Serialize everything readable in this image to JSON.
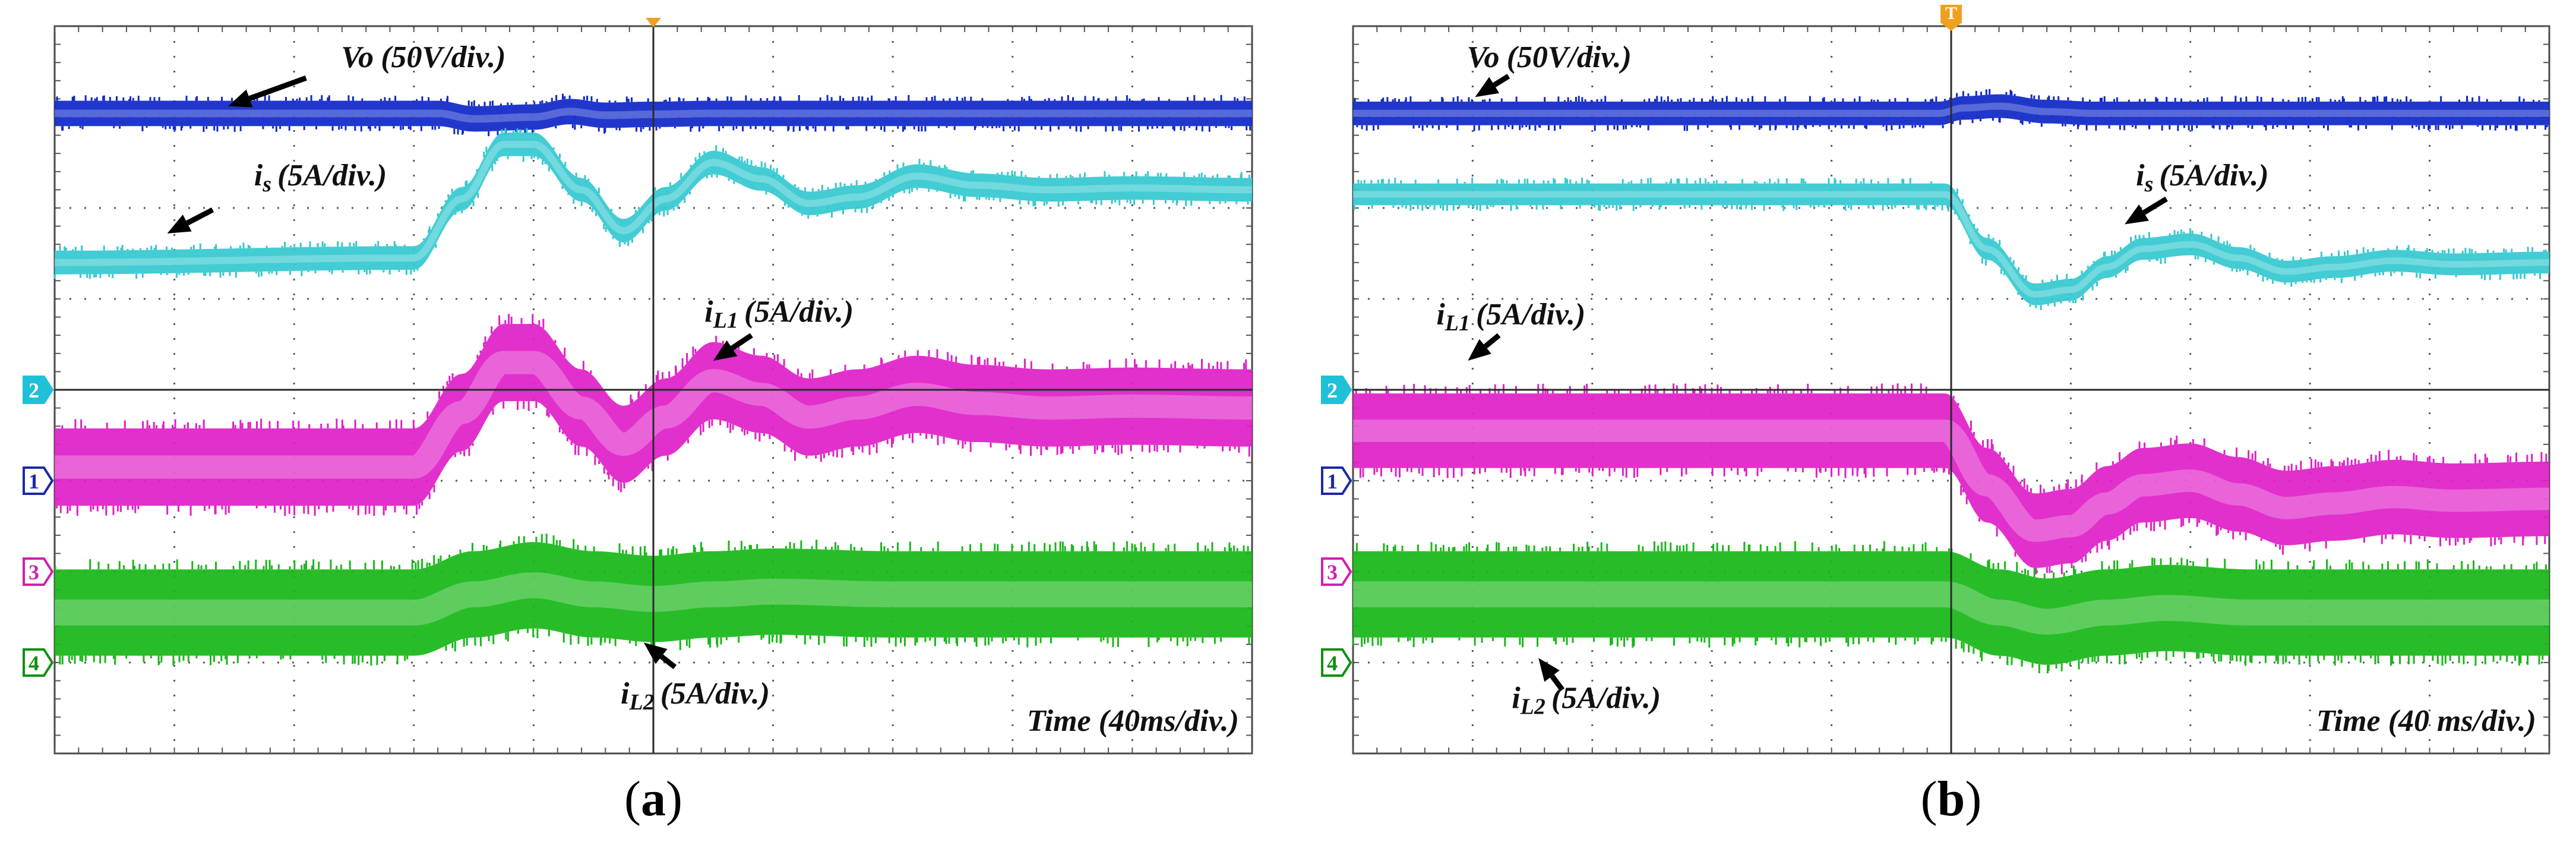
{
  "colors": {
    "vo": "#1028c8",
    "is": "#35c8d0",
    "il1": "#e020c8",
    "il2": "#18b818",
    "marker1": "#1a2aa8",
    "marker2": "#20c0d8",
    "marker3": "#d020b0",
    "marker4": "#109010",
    "trigger": "#f0a020",
    "grid": "#5a5a5a",
    "text": "#111111"
  },
  "chart_data": [
    {
      "id": "a",
      "type": "line",
      "title": "(a)",
      "caption_open": "(",
      "caption_letter": "a",
      "caption_close": ")",
      "xlabel": "Time (40ms/div.)",
      "x_units": "div",
      "y_units": "div",
      "xlim": [
        0,
        10
      ],
      "ylim": [
        -4,
        4
      ],
      "grid": true,
      "trigger_x": 5,
      "trigger_label": "",
      "markers": [
        {
          "id": "2",
          "y": 0.0
        },
        {
          "id": "1",
          "y": -1.0
        },
        {
          "id": "3",
          "y": -2.0
        },
        {
          "id": "4",
          "y": -3.0
        }
      ],
      "series": [
        {
          "name": "Vo (50V/div.)",
          "label_main": "Vo",
          "label_sub": "",
          "label_unit": "(50V/div.)",
          "key": "vo",
          "band": 0.28,
          "x": [
            0,
            3.2,
            3.5,
            4.0,
            4.3,
            4.6,
            5.0,
            5.5,
            6.0,
            10
          ],
          "y": [
            3.04,
            3.04,
            2.98,
            3.0,
            3.06,
            3.02,
            3.03,
            3.04,
            3.04,
            3.04
          ]
        },
        {
          "name": "is (5A/div.)",
          "label_main": "i",
          "label_sub": "s",
          "label_unit": "(5A/div.)",
          "key": "is",
          "band": 0.26,
          "x": [
            0,
            3.0,
            3.4,
            3.75,
            4.0,
            4.4,
            4.75,
            5.1,
            5.5,
            5.9,
            6.3,
            6.7,
            7.2,
            7.7,
            8.3,
            9.0,
            10
          ],
          "y": [
            1.4,
            1.45,
            2.1,
            2.7,
            2.7,
            2.2,
            1.75,
            2.1,
            2.5,
            2.32,
            2.05,
            2.12,
            2.35,
            2.25,
            2.2,
            2.22,
            2.2
          ]
        },
        {
          "name": "iL1 (5A/div.)",
          "label_main": "i",
          "label_sub": "L1",
          "label_unit": "(5A/div.)",
          "key": "il1",
          "band": 0.85,
          "x": [
            0,
            3.0,
            3.4,
            3.75,
            4.0,
            4.4,
            4.75,
            5.1,
            5.5,
            5.9,
            6.3,
            6.7,
            7.2,
            7.7,
            8.3,
            9.0,
            10
          ],
          "y": [
            -0.85,
            -0.85,
            -0.25,
            0.3,
            0.3,
            -0.2,
            -0.6,
            -0.3,
            0.1,
            -0.05,
            -0.3,
            -0.2,
            -0.05,
            -0.15,
            -0.2,
            -0.18,
            -0.2
          ]
        },
        {
          "name": "iL2 (5A/div.)",
          "label_main": "i",
          "label_sub": "L2",
          "label_unit": "(5A/div.)",
          "key": "il2",
          "band": 0.95,
          "x": [
            0,
            3.0,
            3.5,
            4.0,
            4.5,
            5.0,
            5.5,
            6.0,
            7.0,
            8.0,
            10
          ],
          "y": [
            -2.45,
            -2.45,
            -2.25,
            -2.15,
            -2.25,
            -2.3,
            -2.25,
            -2.22,
            -2.25,
            -2.25,
            -2.25
          ]
        }
      ],
      "annotations": [
        {
          "series": "vo",
          "text_x": 3.08,
          "text_y": 3.55,
          "arrow_from": [
            2.1,
            3.43
          ],
          "arrow_to": [
            1.45,
            3.12
          ]
        },
        {
          "series": "is",
          "text_x": 2.22,
          "text_y": 2.25,
          "arrow_from": [
            1.32,
            1.98
          ],
          "arrow_to": [
            0.94,
            1.72
          ]
        },
        {
          "series": "il1",
          "text_x": 6.05,
          "text_y": 0.75,
          "arrow_from": [
            5.82,
            0.6
          ],
          "arrow_to": [
            5.5,
            0.32
          ]
        },
        {
          "series": "il2",
          "text_x": 5.35,
          "text_y": -3.45,
          "arrow_from": [
            5.18,
            -3.05
          ],
          "arrow_to": [
            4.92,
            -2.78
          ]
        }
      ],
      "time_anchor": "end"
    },
    {
      "id": "b",
      "type": "line",
      "title": "(b)",
      "caption_open": "(",
      "caption_letter": "b",
      "caption_close": ")",
      "xlabel": "Time (40 ms/div.)",
      "x_units": "div",
      "y_units": "div",
      "xlim": [
        0,
        10
      ],
      "ylim": [
        -4,
        4
      ],
      "grid": true,
      "trigger_x": 5,
      "trigger_label": "T",
      "markers": [
        {
          "id": "2",
          "y": 0.0
        },
        {
          "id": "1",
          "y": -1.0
        },
        {
          "id": "3",
          "y": -2.0
        },
        {
          "id": "4",
          "y": -3.0
        }
      ],
      "series": [
        {
          "name": "Vo (50V/div.)",
          "label_main": "Vo",
          "label_sub": "",
          "label_unit": "(50V/div.)",
          "key": "vo",
          "band": 0.26,
          "x": [
            0,
            4.9,
            5.1,
            5.4,
            5.8,
            6.2,
            10
          ],
          "y": [
            3.04,
            3.04,
            3.1,
            3.12,
            3.06,
            3.04,
            3.04
          ]
        },
        {
          "name": "is (5A/div.)",
          "label_main": "i",
          "label_sub": "s",
          "label_unit": "(5A/div.)",
          "key": "is",
          "band": 0.24,
          "x": [
            0,
            4.95,
            5.3,
            5.7,
            6.0,
            6.3,
            6.6,
            7.0,
            7.4,
            7.8,
            8.2,
            8.7,
            9.2,
            10
          ],
          "y": [
            2.15,
            2.15,
            1.55,
            1.05,
            1.1,
            1.35,
            1.55,
            1.6,
            1.45,
            1.3,
            1.35,
            1.42,
            1.38,
            1.4
          ]
        },
        {
          "name": "iL1 (5A/div.)",
          "label_main": "i",
          "label_sub": "L1",
          "label_unit": "(5A/div.)",
          "key": "il1",
          "band": 0.82,
          "x": [
            0,
            4.95,
            5.3,
            5.7,
            6.0,
            6.3,
            6.6,
            7.0,
            7.4,
            7.8,
            8.2,
            8.7,
            9.2,
            10
          ],
          "y": [
            -0.45,
            -0.45,
            -1.05,
            -1.55,
            -1.5,
            -1.25,
            -1.05,
            -1.0,
            -1.15,
            -1.3,
            -1.25,
            -1.18,
            -1.22,
            -1.2
          ]
        },
        {
          "name": "iL2 (5A/div.)",
          "label_main": "i",
          "label_sub": "L2",
          "label_unit": "(5A/div.)",
          "key": "il2",
          "band": 0.95,
          "x": [
            0,
            4.95,
            5.4,
            5.8,
            6.3,
            6.8,
            7.5,
            8.5,
            10
          ],
          "y": [
            -2.25,
            -2.25,
            -2.45,
            -2.55,
            -2.45,
            -2.4,
            -2.45,
            -2.45,
            -2.45
          ]
        }
      ],
      "annotations": [
        {
          "series": "vo",
          "text_x": 1.64,
          "text_y": 3.55,
          "arrow_from": [
            1.3,
            3.45
          ],
          "arrow_to": [
            1.02,
            3.22
          ]
        },
        {
          "series": "is",
          "text_x": 7.1,
          "text_y": 2.25,
          "arrow_from": [
            6.8,
            2.1
          ],
          "arrow_to": [
            6.45,
            1.82
          ]
        },
        {
          "series": "il1",
          "text_x": 1.32,
          "text_y": 0.72,
          "arrow_from": [
            1.22,
            0.6
          ],
          "arrow_to": [
            0.96,
            0.32
          ]
        },
        {
          "series": "il2",
          "text_x": 1.95,
          "text_y": -3.5,
          "arrow_from": [
            1.75,
            -3.3
          ],
          "arrow_to": [
            1.55,
            -2.95
          ]
        }
      ],
      "time_anchor": "end"
    }
  ]
}
